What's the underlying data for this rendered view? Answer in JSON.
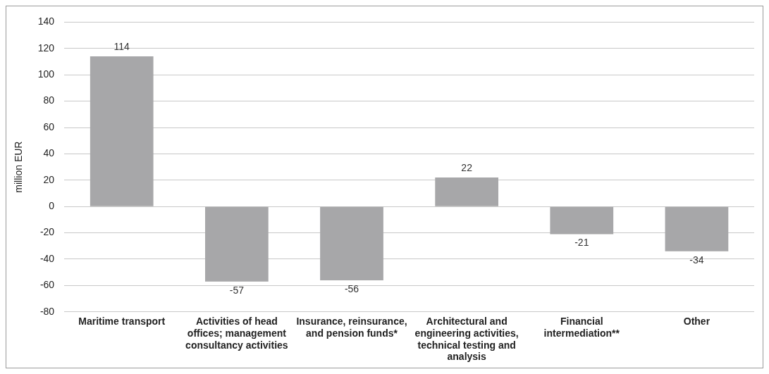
{
  "chart_data": {
    "type": "bar",
    "ylabel": "million EUR",
    "categories": [
      "Maritime transport",
      "Activities of head offices; management consultancy activities",
      "Insurance, reinsurance, and pension funds*",
      "Architectural and engineering activities, technical testing and analysis",
      "Financial intermediation**",
      "Other"
    ],
    "values": [
      114,
      -57,
      -56,
      22,
      -21,
      -34
    ],
    "color": "#a7a7a9",
    "ylim": [
      -80,
      140
    ],
    "yticks": [
      -80,
      -60,
      -40,
      -20,
      0,
      20,
      40,
      60,
      80,
      100,
      120,
      140
    ],
    "grid": "y",
    "data_labels": true,
    "legend": false
  }
}
